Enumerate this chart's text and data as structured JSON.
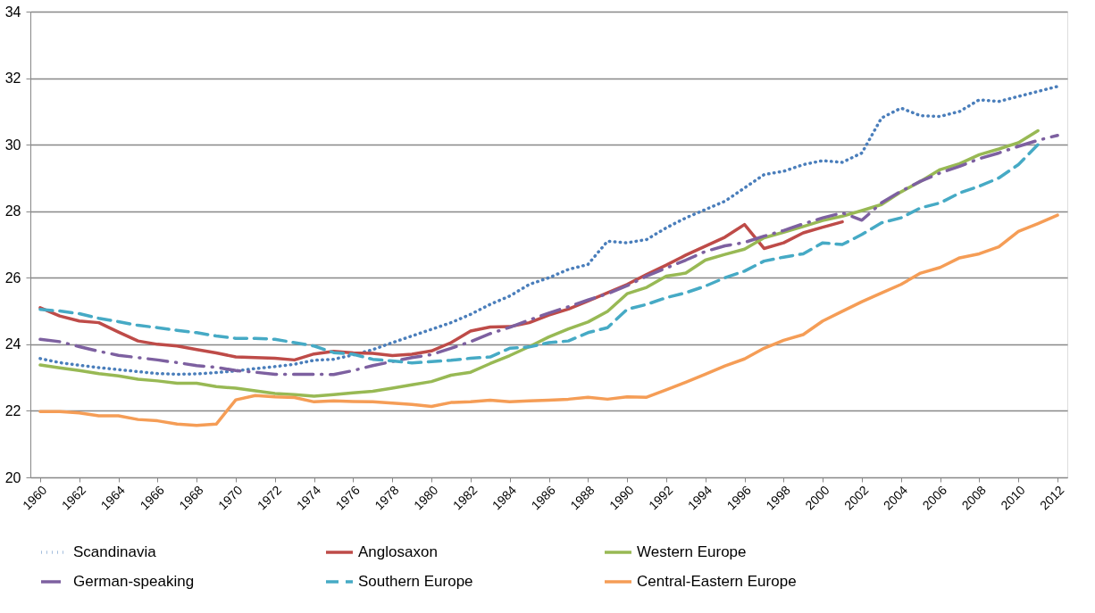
{
  "chart_data": {
    "type": "line",
    "x": [
      1960,
      1961,
      1962,
      1963,
      1964,
      1965,
      1966,
      1967,
      1968,
      1969,
      1970,
      1971,
      1972,
      1973,
      1974,
      1975,
      1976,
      1977,
      1978,
      1979,
      1980,
      1981,
      1982,
      1983,
      1984,
      1985,
      1986,
      1987,
      1988,
      1989,
      1990,
      1991,
      1992,
      1993,
      1994,
      1995,
      1996,
      1997,
      1998,
      1999,
      2000,
      2001,
      2002,
      2003,
      2004,
      2005,
      2006,
      2007,
      2008,
      2009,
      2010,
      2011,
      2012
    ],
    "xlim": [
      1959.5,
      2012.5
    ],
    "xticks": [
      1960,
      1962,
      1964,
      1966,
      1968,
      1970,
      1972,
      1974,
      1976,
      1978,
      1980,
      1982,
      1984,
      1986,
      1988,
      1990,
      1992,
      1994,
      1996,
      1998,
      2000,
      2002,
      2004,
      2006,
      2008,
      2010,
      2012
    ],
    "ylim": [
      20,
      34
    ],
    "yticks": [
      20,
      22,
      24,
      26,
      28,
      30,
      32,
      34
    ],
    "grid": "y",
    "legend": "bottom",
    "series": [
      {
        "name": "Scandinavia",
        "color": "#4a7ebb",
        "line_style": "dotted",
        "values": [
          23.57,
          23.45,
          23.37,
          23.3,
          23.24,
          23.18,
          23.12,
          23.1,
          23.11,
          23.15,
          23.2,
          23.27,
          23.33,
          23.4,
          23.52,
          23.55,
          23.68,
          23.84,
          24.05,
          24.25,
          24.45,
          24.65,
          24.9,
          25.2,
          25.45,
          25.8,
          26.0,
          26.25,
          26.4,
          27.1,
          27.05,
          27.15,
          27.5,
          27.8,
          28.05,
          28.3,
          28.7,
          29.1,
          29.2,
          29.4,
          29.52,
          29.47,
          29.75,
          30.8,
          31.1,
          30.87,
          30.85,
          31.0,
          31.35,
          31.3,
          31.45,
          31.6,
          31.75
        ]
      },
      {
        "name": "Anglosaxon",
        "color": "#be4b48",
        "line_style": "solid",
        "values": [
          25.1,
          24.85,
          24.7,
          24.65,
          24.37,
          24.1,
          24.0,
          23.95,
          23.84,
          23.74,
          23.62,
          23.6,
          23.58,
          23.53,
          23.71,
          23.79,
          23.74,
          23.73,
          23.66,
          23.7,
          23.8,
          24.05,
          24.4,
          24.52,
          24.53,
          24.65,
          24.88,
          25.06,
          25.3,
          25.55,
          25.8,
          26.1,
          26.38,
          26.68,
          26.95,
          27.22,
          27.6,
          26.88,
          27.05,
          27.35,
          27.52,
          27.68,
          null,
          null,
          null,
          null,
          null,
          null,
          null,
          null,
          null,
          null,
          null
        ]
      },
      {
        "name": "Western Europe",
        "color": "#98b954",
        "line_style": "solid",
        "values": [
          23.38,
          23.29,
          23.21,
          23.12,
          23.05,
          22.95,
          22.9,
          22.83,
          22.83,
          22.73,
          22.68,
          22.6,
          22.52,
          22.49,
          22.44,
          22.49,
          22.54,
          22.59,
          22.68,
          22.78,
          22.88,
          23.07,
          23.16,
          23.42,
          23.66,
          23.93,
          24.22,
          24.46,
          24.67,
          24.99,
          25.52,
          25.71,
          26.05,
          26.14,
          26.53,
          26.7,
          26.86,
          27.2,
          27.37,
          27.54,
          27.72,
          27.85,
          28.02,
          28.2,
          28.58,
          28.9,
          29.25,
          29.43,
          29.7,
          29.87,
          30.06,
          30.42,
          null
        ]
      },
      {
        "name": "German-speaking",
        "color": "#7d60a0",
        "line_style": "dashdot",
        "values": [
          24.15,
          24.08,
          23.93,
          23.79,
          23.67,
          23.6,
          23.53,
          23.45,
          23.36,
          23.31,
          23.21,
          23.16,
          23.1,
          23.1,
          23.1,
          23.09,
          23.21,
          23.36,
          23.48,
          23.6,
          23.69,
          23.88,
          24.08,
          24.32,
          24.51,
          24.73,
          24.94,
          25.13,
          25.33,
          25.52,
          25.76,
          26.05,
          26.29,
          26.53,
          26.79,
          26.96,
          27.06,
          27.25,
          27.42,
          27.62,
          27.8,
          27.95,
          27.73,
          28.25,
          28.6,
          28.9,
          29.15,
          29.35,
          29.58,
          29.75,
          29.95,
          30.13,
          30.28
        ]
      },
      {
        "name": "Southern Europe",
        "color": "#46aac5",
        "line_style": "dashed",
        "values": [
          25.05,
          25.0,
          24.92,
          24.78,
          24.68,
          24.57,
          24.5,
          24.42,
          24.35,
          24.25,
          24.18,
          24.18,
          24.15,
          24.05,
          23.95,
          23.75,
          23.7,
          23.55,
          23.5,
          23.44,
          23.48,
          23.52,
          23.58,
          23.62,
          23.88,
          23.92,
          24.05,
          24.1,
          24.35,
          24.5,
          25.05,
          25.2,
          25.4,
          25.55,
          25.75,
          26.0,
          26.2,
          26.5,
          26.62,
          26.72,
          27.05,
          27.0,
          27.3,
          27.65,
          27.8,
          28.1,
          28.25,
          28.55,
          28.75,
          29.0,
          29.4,
          30.0,
          null
        ]
      },
      {
        "name": "Central-Eastern Europe",
        "color": "#f59d56",
        "line_style": "solid",
        "values": [
          21.98,
          21.98,
          21.94,
          21.85,
          21.85,
          21.74,
          21.7,
          21.6,
          21.56,
          21.6,
          22.33,
          22.46,
          22.42,
          22.4,
          22.27,
          22.3,
          22.28,
          22.27,
          22.23,
          22.19,
          22.13,
          22.25,
          22.27,
          22.32,
          22.27,
          22.3,
          22.32,
          22.35,
          22.41,
          22.35,
          22.42,
          22.41,
          22.63,
          22.86,
          23.1,
          23.35,
          23.56,
          23.88,
          24.12,
          24.29,
          24.7,
          24.99,
          25.28,
          25.54,
          25.8,
          26.14,
          26.31,
          26.6,
          26.72,
          26.93,
          27.39,
          27.63,
          27.88
        ]
      }
    ]
  }
}
